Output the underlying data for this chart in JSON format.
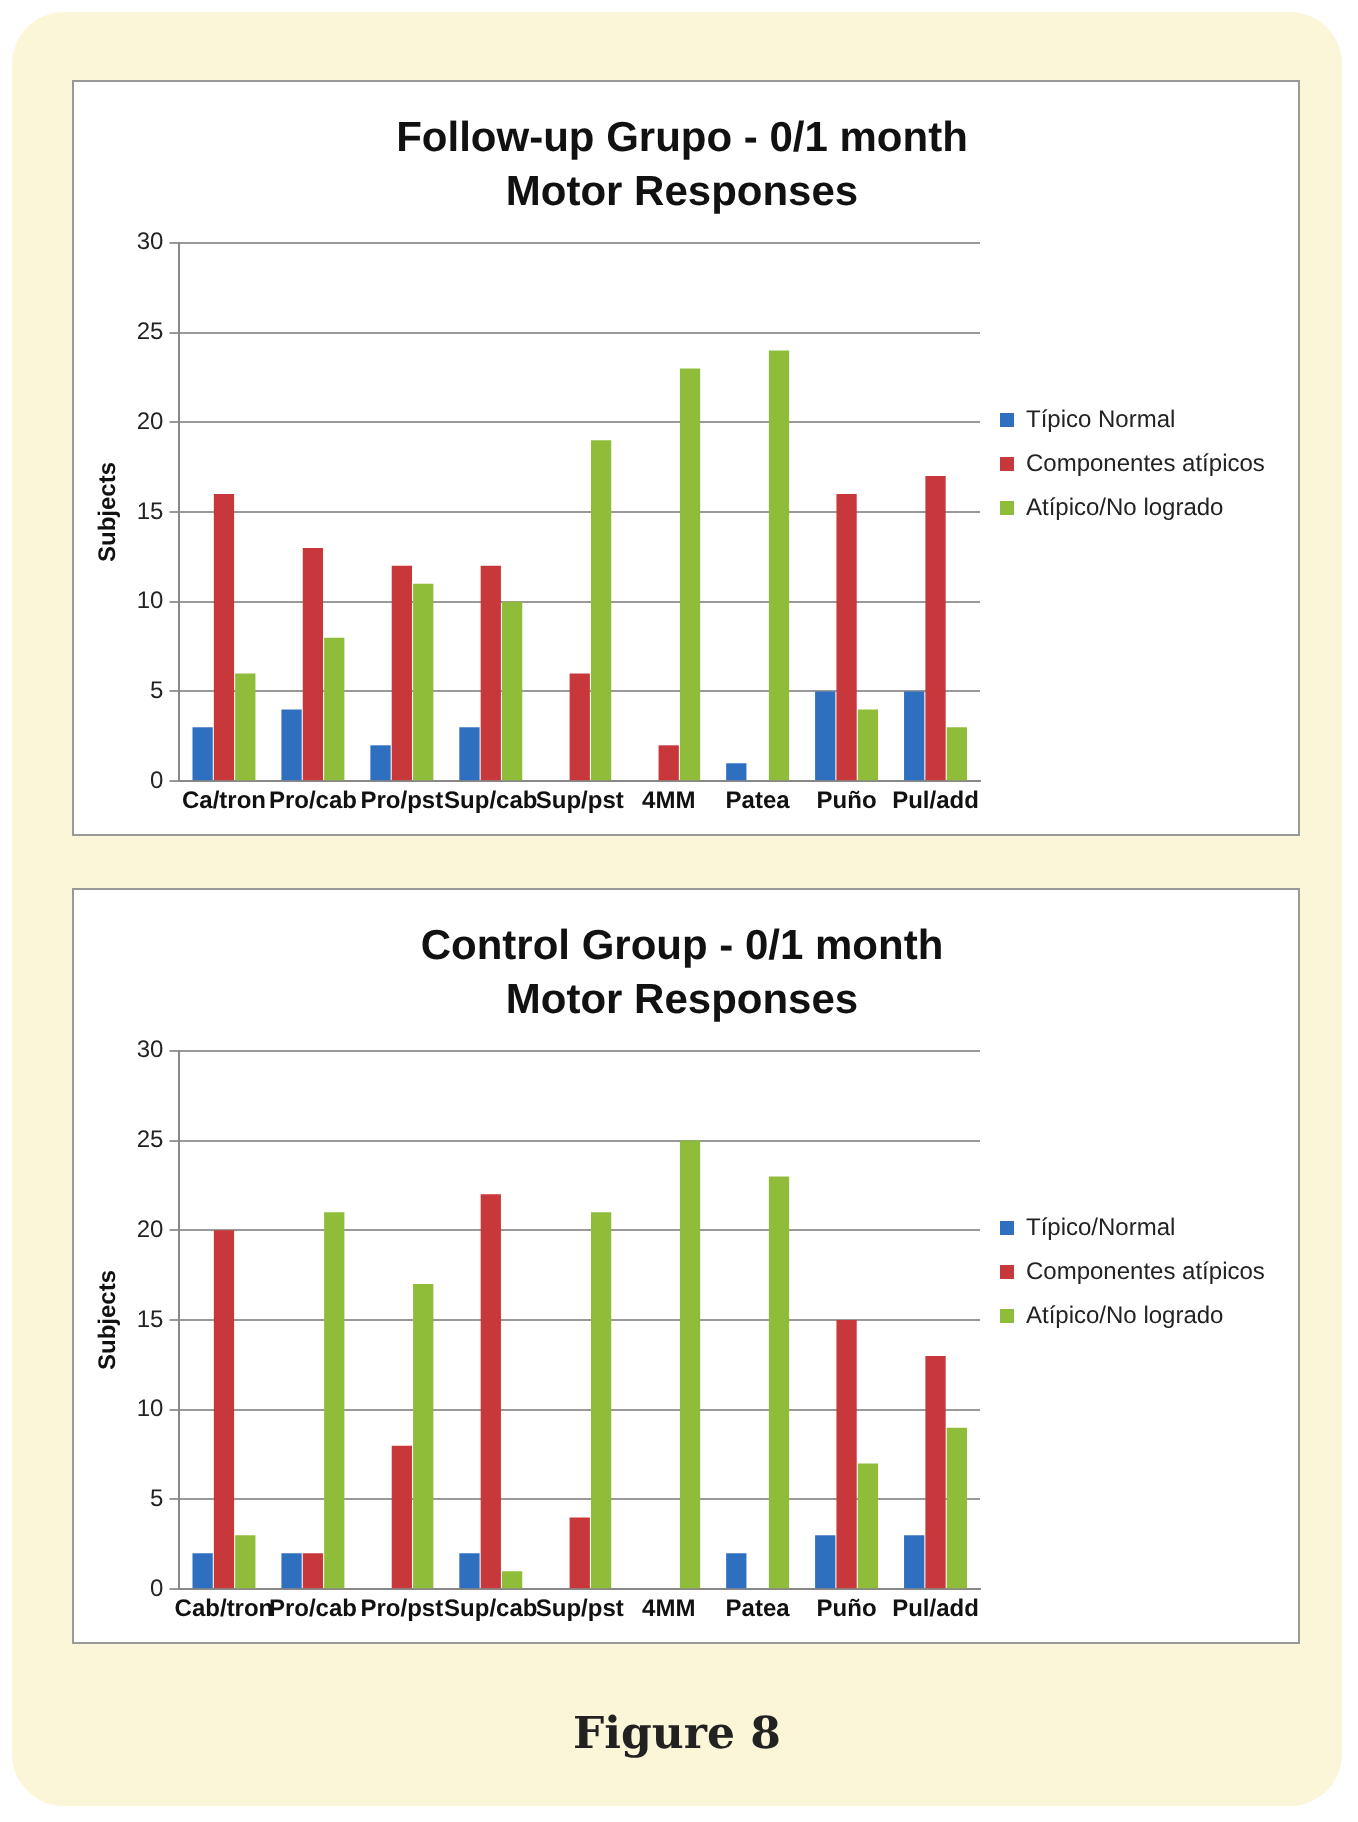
{
  "chart_data": [
    {
      "type": "bar",
      "title": "Follow-up Grupo - 0/1 month",
      "subtitle": "Motor Responses",
      "ylabel": "Subjects",
      "categories": [
        "Ca/tron",
        "Pro/cab",
        "Pro/pst",
        "Sup/cab",
        "Sup/pst",
        "4MM",
        "Patea",
        "Puño",
        "Pul/add"
      ],
      "series": [
        {
          "name": "Típico Normal",
          "color": "#2f6fc0",
          "values": [
            3,
            4,
            2,
            3,
            0,
            0,
            1,
            5,
            5
          ]
        },
        {
          "name": "Componentes atípicos",
          "color": "#c8383a",
          "values": [
            16,
            13,
            12,
            12,
            6,
            2,
            0,
            16,
            17
          ]
        },
        {
          "name": "Atípico/No logrado",
          "color": "#8fbd3a",
          "values": [
            6,
            8,
            11,
            10,
            19,
            23,
            24,
            4,
            3
          ]
        }
      ],
      "ylim": [
        0,
        30
      ],
      "yticks": [
        0,
        5,
        10,
        15,
        20,
        25,
        30
      ],
      "grid": "y",
      "legend": "right"
    },
    {
      "type": "bar",
      "title": "Control Group - 0/1 month",
      "subtitle": "Motor Responses",
      "ylabel": "Subjects",
      "categories": [
        "Cab/tron",
        "Pro/cab",
        "Pro/pst",
        "Sup/cab",
        "Sup/pst",
        "4MM",
        "Patea",
        "Puño",
        "Pul/add"
      ],
      "series": [
        {
          "name": "Típico/Normal",
          "color": "#2f6fc0",
          "values": [
            2,
            2,
            0,
            2,
            0,
            0,
            2,
            3,
            3
          ]
        },
        {
          "name": "Componentes atípicos",
          "color": "#c8383a",
          "values": [
            20,
            2,
            8,
            22,
            4,
            0,
            0,
            15,
            13
          ]
        },
        {
          "name": "Atípico/No logrado",
          "color": "#8fbd3a",
          "values": [
            3,
            21,
            17,
            1,
            21,
            25,
            23,
            7,
            9
          ]
        }
      ],
      "ylim": [
        0,
        30
      ],
      "yticks": [
        0,
        5,
        10,
        15,
        20,
        25,
        30
      ],
      "grid": "y",
      "legend": "right",
      "annotations": [
        "Figure 8"
      ]
    }
  ]
}
